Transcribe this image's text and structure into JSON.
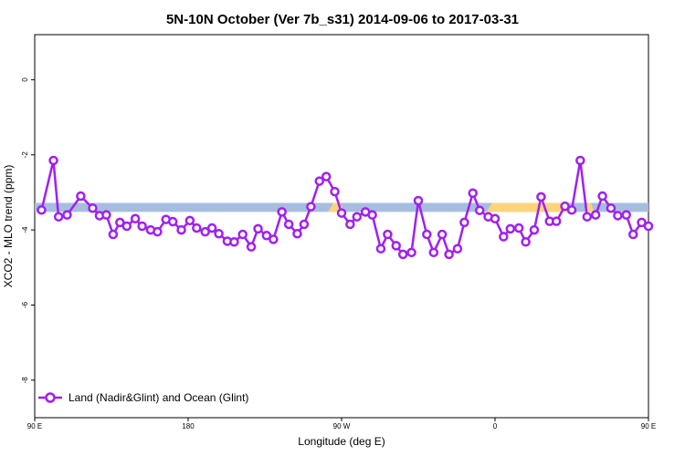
{
  "chart_data": {
    "type": "line",
    "title": "5N-10N October (Ver 7b_s31)   2014-09-06 to 2017-03-31",
    "xlabel": "Longitude (deg E)",
    "ylabel": "XCO2 - MLO trend (ppm)",
    "xlim": [
      90,
      450
    ],
    "ylim": [
      -9.0,
      1.2
    ],
    "x_tick_values": [
      90,
      180,
      270,
      360,
      450
    ],
    "x_tick_labels": [
      "90 E",
      "180",
      "90 W",
      "0",
      "90 E"
    ],
    "y_tick_values": [
      0,
      -2,
      -4,
      -6,
      -8
    ],
    "y_tick_labels": [
      "0",
      "-2",
      "-4",
      "-6",
      "-8"
    ],
    "grid": false,
    "legend_position": "bottom-left",
    "series": [
      {
        "name": "Land (Nadir&Glint) and Ocean (Glint)",
        "color": "#a020f0",
        "x": [
          94,
          101,
          104,
          109,
          117,
          124,
          128,
          132,
          136,
          140,
          144,
          149,
          153,
          158,
          162,
          167,
          171,
          176,
          181,
          185,
          190,
          194,
          198,
          203,
          207,
          212,
          217,
          221,
          226,
          230,
          235,
          239,
          244,
          248,
          252,
          257,
          261,
          266,
          270,
          275,
          279,
          284,
          288,
          293,
          297,
          302,
          306,
          311,
          315,
          320,
          324,
          329,
          333,
          338,
          342,
          347,
          351,
          356,
          360,
          365,
          369,
          374,
          378,
          383,
          387,
          392,
          396,
          401,
          405,
          410,
          414,
          419,
          423,
          428,
          432,
          437,
          441,
          446,
          450
        ],
        "y": [
          -3.47,
          -2.15,
          -3.65,
          -3.6,
          -3.1,
          -3.42,
          -3.62,
          -3.6,
          -4.12,
          -3.8,
          -3.9,
          -3.7,
          -3.9,
          -4.0,
          -4.05,
          -3.72,
          -3.78,
          -4.0,
          -3.75,
          -3.95,
          -4.05,
          -3.95,
          -4.1,
          -4.3,
          -4.32,
          -4.12,
          -4.45,
          -3.97,
          -4.15,
          -4.25,
          -3.52,
          -3.85,
          -4.1,
          -3.85,
          -3.38,
          -2.7,
          -2.58,
          -2.98,
          -3.55,
          -3.85,
          -3.65,
          -3.52,
          -3.6,
          -4.5,
          -4.12,
          -4.42,
          -4.65,
          -4.6,
          -3.22,
          -4.12,
          -4.6,
          -4.12,
          -4.65,
          -4.5,
          -3.8,
          -3.02,
          -3.48,
          -3.65,
          -3.7,
          -4.18,
          -3.97,
          -3.95,
          -4.32,
          -4.0,
          -3.12,
          -3.77,
          -3.77,
          -3.37,
          -3.47,
          -2.15,
          -3.65,
          -3.6,
          -3.1,
          -3.42,
          -3.62,
          -3.6,
          -4.12,
          -3.8,
          -3.9
        ]
      }
    ],
    "band": {
      "y_center": -3.4,
      "half_height": 0.12,
      "color": "#a7bde0",
      "highlight_color": "#fcd57a",
      "highlight_ranges": [
        [
          262,
          272
        ],
        [
          355,
          404
        ],
        [
          400,
          404
        ],
        [
          413,
          418
        ]
      ]
    }
  },
  "legend": {
    "label": "Land (Nadir&Glint) and Ocean (Glint)"
  }
}
